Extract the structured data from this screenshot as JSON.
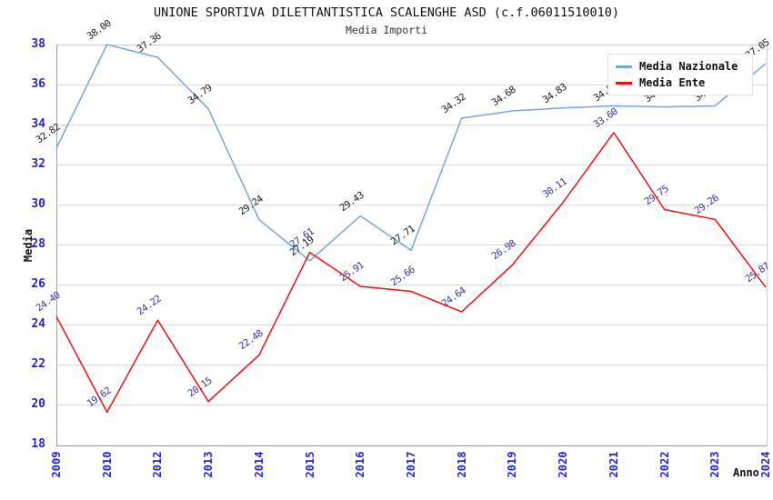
{
  "title": "UNIONE SPORTIVA DILETTANTISTICA SCALENGHE ASD (c.f.06011510010)",
  "subtitle": "Media Importi",
  "axis": {
    "y_label": "Media",
    "x_label": "Anno",
    "ylim": [
      18,
      38
    ],
    "y_tick_step": 2,
    "tick_color": "#2424cf",
    "band_color": "#f3f3f3",
    "grid_color": "#dcdcdc"
  },
  "legend": {
    "position": "top-right",
    "items": [
      {
        "label": "Media Nazionale",
        "color": "#74a4e4"
      },
      {
        "label": "Media Ente",
        "color": "#ee1111"
      }
    ]
  },
  "chart_data": {
    "type": "line",
    "title": "UNIONE SPORTIVA DILETTANTISTICA SCALENGHE ASD (c.f.06011510010)",
    "subtitle": "Media Importi",
    "xlabel": "Anno",
    "ylabel": "Media",
    "ylim": [
      18,
      38
    ],
    "grid": true,
    "legend_position": "top-right",
    "x": [
      "2009",
      "2010",
      "2012",
      "2013",
      "2014",
      "2015",
      "2016",
      "2017",
      "2018",
      "2019",
      "2020",
      "2021",
      "2022",
      "2023",
      "2024"
    ],
    "series": [
      {
        "name": "Media Nazionale",
        "color": "#74a4e4",
        "label_color": "#1a1a1a",
        "values": [
          32.82,
          38.0,
          37.36,
          34.79,
          29.24,
          27.19,
          29.43,
          27.71,
          34.32,
          34.68,
          34.83,
          34.93,
          34.88,
          34.93,
          37.05
        ]
      },
      {
        "name": "Media Ente",
        "color": "#ee1111",
        "label_color": "#34349e",
        "values": [
          24.4,
          19.62,
          24.22,
          20.15,
          22.48,
          27.61,
          25.91,
          25.66,
          24.64,
          26.98,
          30.11,
          33.6,
          29.75,
          29.26,
          25.87
        ]
      }
    ]
  }
}
